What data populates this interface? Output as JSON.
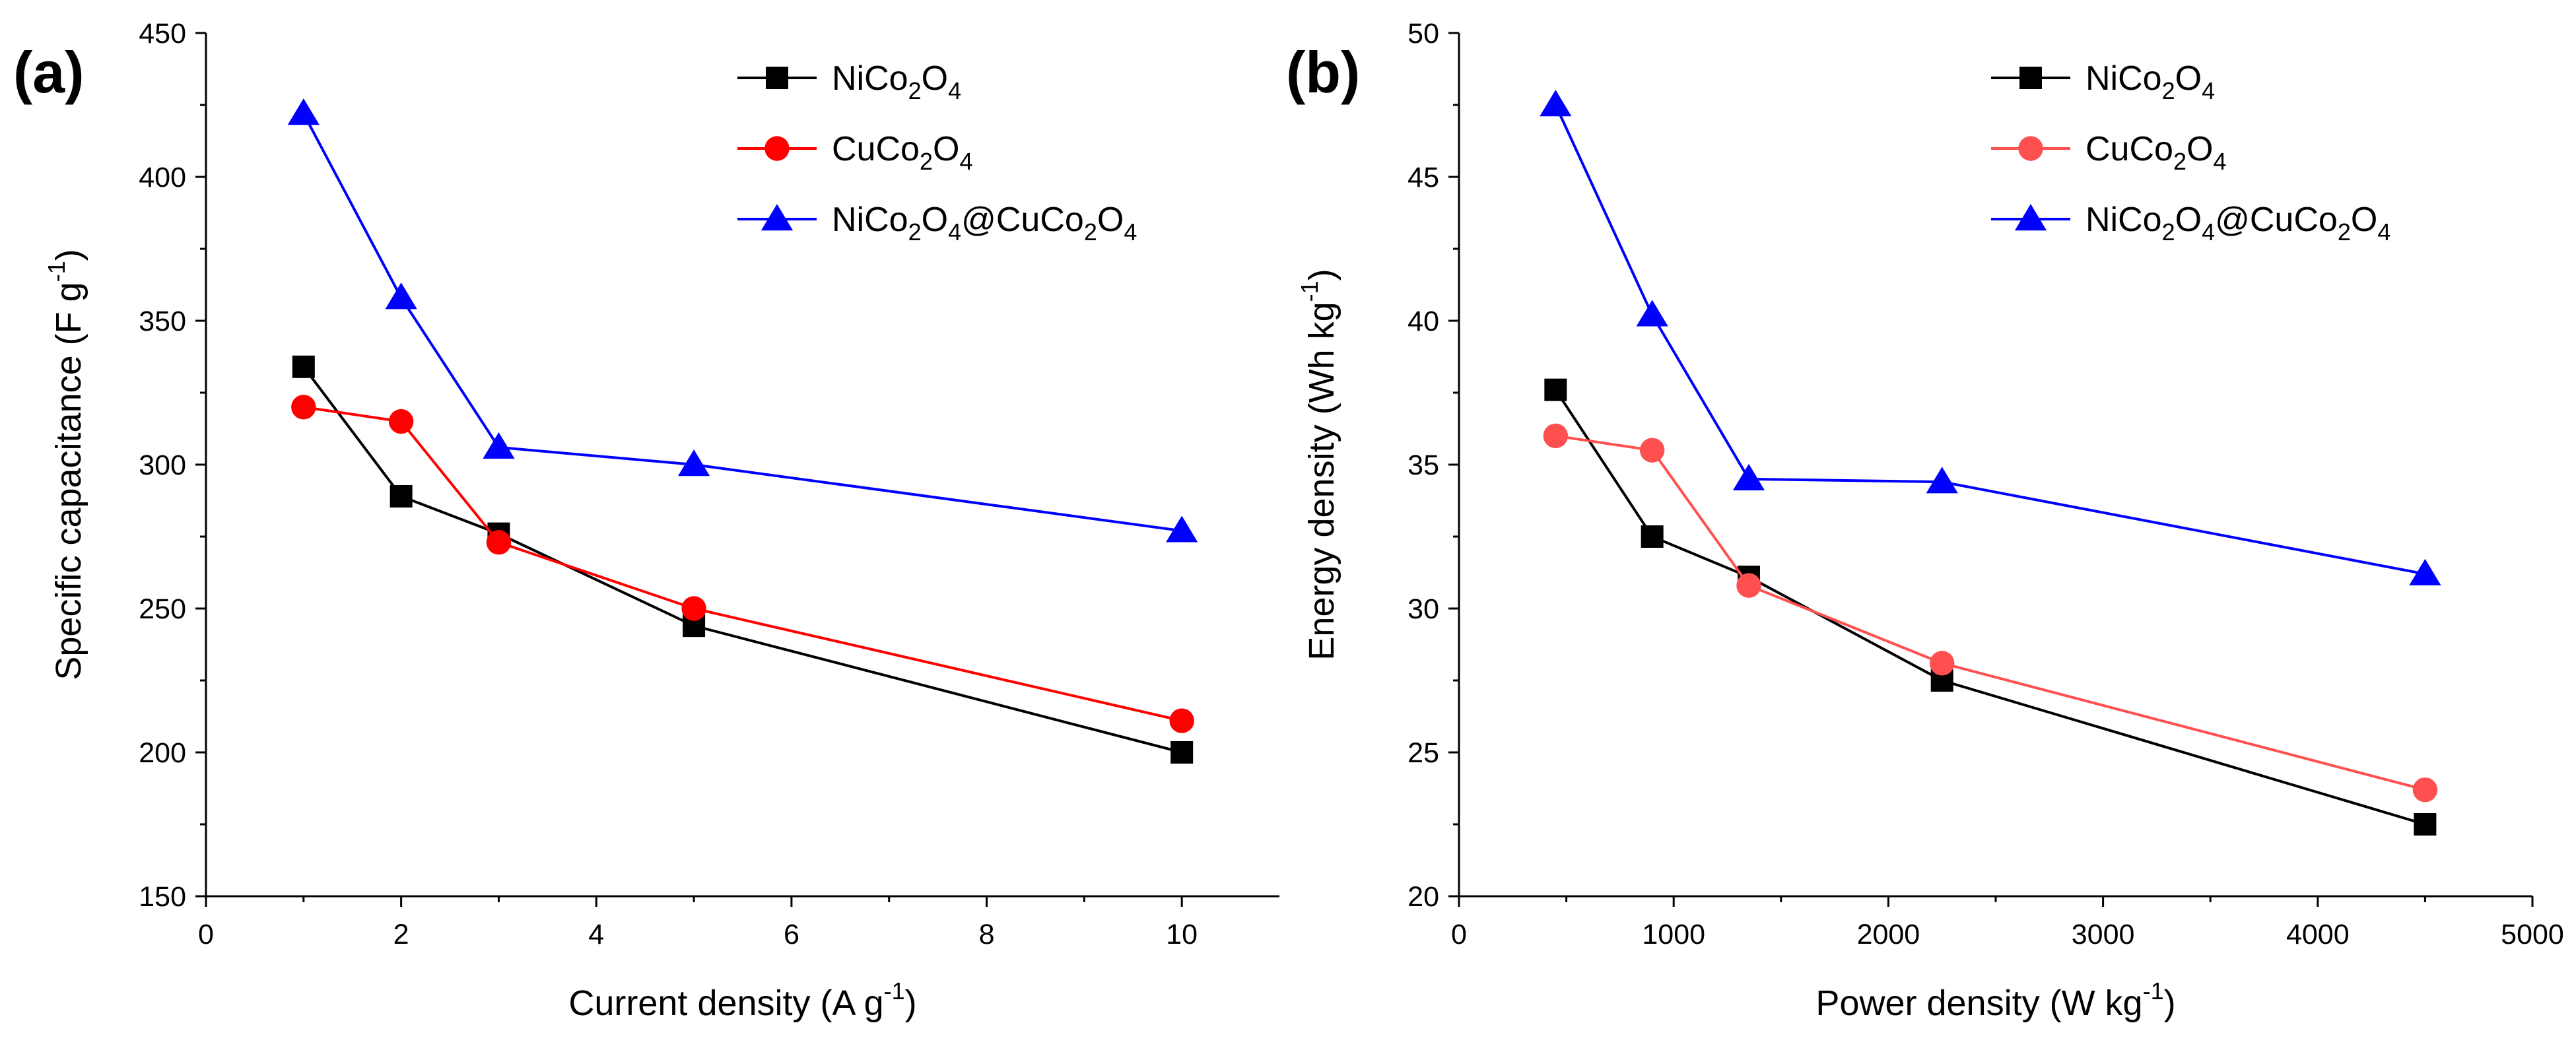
{
  "chart_data": [
    {
      "panel": "(a)",
      "type": "line",
      "xlabel": "Current density (A g",
      "xlabel_sup": "-1",
      "xlabel_end": ")",
      "ylabel": "Specific capacitance (F g",
      "ylabel_sup": "-1",
      "ylabel_end": ")",
      "xlim": [
        0,
        11
      ],
      "ylim": [
        150,
        450
      ],
      "xticks": [
        0,
        2,
        4,
        6,
        8,
        10
      ],
      "yticks": [
        150,
        200,
        250,
        300,
        350,
        400,
        450
      ],
      "legend_position": "top-right",
      "series": [
        {
          "name": "NiCo2O4",
          "color": "#000000",
          "marker": "square",
          "x": [
            1,
            2,
            3,
            5,
            10
          ],
          "y": [
            334,
            289,
            276,
            244,
            200
          ]
        },
        {
          "name": "CuCo2O4",
          "color": "#ff0000",
          "marker": "circle",
          "x": [
            1,
            2,
            3,
            5,
            10
          ],
          "y": [
            320,
            315,
            273,
            250,
            211
          ]
        },
        {
          "name": "NiCo2O4@CuCo2O4",
          "color": "#0000ff",
          "marker": "triangle",
          "x": [
            1,
            2,
            3,
            5,
            10
          ],
          "y": [
            422,
            358,
            306,
            300,
            277
          ]
        }
      ]
    },
    {
      "panel": "(b)",
      "type": "line",
      "xlabel": "Power density (W kg",
      "xlabel_sup": "-1",
      "xlabel_end": ")",
      "ylabel": "Energy density (Wh kg",
      "ylabel_sup": "-1",
      "ylabel_end": ")",
      "xlim": [
        0,
        5000
      ],
      "ylim": [
        20,
        50
      ],
      "xticks": [
        0,
        1000,
        2000,
        3000,
        4000,
        5000
      ],
      "yticks": [
        20,
        25,
        30,
        35,
        40,
        45,
        50
      ],
      "legend_position": "top-right",
      "series": [
        {
          "name": "NiCo2O4",
          "color": "#000000",
          "marker": "square",
          "x": [
            450,
            900,
            1350,
            2250,
            4500
          ],
          "y": [
            37.6,
            32.5,
            31.1,
            27.5,
            22.5
          ]
        },
        {
          "name": "CuCo2O4",
          "color": "#ff5050",
          "marker": "circle",
          "x": [
            450,
            900,
            1350,
            2250,
            4500
          ],
          "y": [
            36.0,
            35.5,
            30.8,
            28.1,
            23.7
          ]
        },
        {
          "name": "NiCo2O4@CuCo2O4",
          "color": "#0000ff",
          "marker": "triangle",
          "x": [
            450,
            900,
            1350,
            2250,
            4500
          ],
          "y": [
            47.5,
            40.2,
            34.5,
            34.4,
            31.2
          ]
        }
      ]
    }
  ]
}
